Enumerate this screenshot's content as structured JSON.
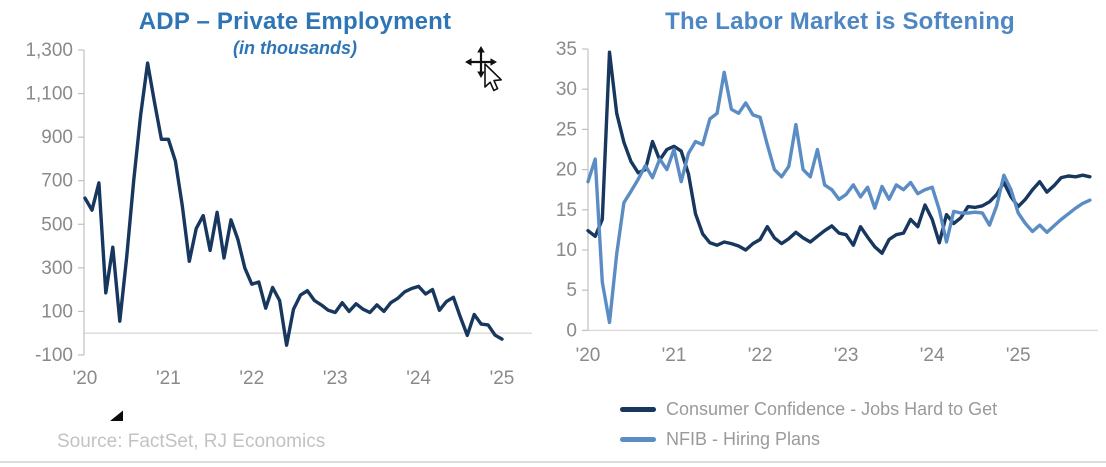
{
  "page": {
    "source_note": "Source: FactSet, RJ Economics",
    "cursor": "move-pointer-cursor"
  },
  "colors": {
    "left_title_blue": "#2E75B6",
    "right_title_blue": "#4E87C4",
    "navy_line": "#17375E",
    "steel_line": "#5B8DC4",
    "axis_label_gray": "#8a8a8a",
    "axis_line_gray": "#c0c0c0",
    "gridline_gray": "#d9d9d9",
    "legend_text_gray": "#9a9a9a",
    "source_text_gray": "#c2c2c2"
  },
  "chart_data": [
    {
      "type": "line",
      "title": "ADP – Private Employment",
      "subtitle": "(in thousands)",
      "x_start": "Jan 2020",
      "x_frequency": "monthly",
      "xticks": [
        "'20",
        "'21",
        "'22",
        "'23",
        "'24",
        "'25"
      ],
      "ytick_values": [
        1300,
        1100,
        900,
        700,
        500,
        300,
        100,
        -100
      ],
      "ytick_labels": [
        "1,300",
        "1,100",
        "900",
        "700",
        "500",
        "300",
        "100",
        "-100"
      ],
      "ylim": [
        -100,
        1300
      ],
      "grid": "zero-line-only",
      "legend": "none",
      "series": [
        {
          "name": "ADP private employment, monthly change (thousands)",
          "color": "#17375E",
          "values": [
            620,
            565,
            690,
            185,
            395,
            55,
            350,
            700,
            1000,
            1240,
            1060,
            890,
            890,
            790,
            585,
            330,
            480,
            540,
            380,
            555,
            345,
            520,
            430,
            300,
            225,
            235,
            115,
            210,
            150,
            -55,
            110,
            175,
            195,
            150,
            130,
            105,
            95,
            140,
            100,
            135,
            110,
            95,
            130,
            100,
            140,
            160,
            190,
            205,
            215,
            180,
            200,
            105,
            145,
            165,
            75,
            -10,
            86,
            42,
            38,
            -9,
            -27
          ]
        }
      ]
    },
    {
      "type": "line",
      "title": "The Labor Market is Softening",
      "subtitle": "",
      "x_start": "Jan 2020",
      "x_frequency": "monthly",
      "xticks": [
        "'20",
        "'21",
        "'22",
        "'23",
        "'24",
        "'25"
      ],
      "ytick_values": [
        35,
        30,
        25,
        20,
        15,
        10,
        5,
        0
      ],
      "ytick_labels": [
        "35",
        "30",
        "25",
        "20",
        "15",
        "10",
        "5",
        "0"
      ],
      "ylim": [
        0,
        35
      ],
      "grid": "zero-line-only",
      "legend": "bottom-left",
      "series": [
        {
          "name": "Consumer Confidence - Jobs Hard to Get",
          "color": "#17375E",
          "values": [
            12.4,
            11.7,
            13.8,
            34.6,
            27.0,
            23.4,
            21.0,
            19.6,
            20.0,
            23.5,
            21.2,
            22.5,
            22.9,
            22.3,
            19.5,
            14.5,
            12.0,
            10.9,
            10.6,
            11.0,
            10.8,
            10.5,
            10.0,
            10.8,
            11.3,
            12.9,
            11.5,
            10.8,
            11.4,
            12.2,
            11.5,
            11.0,
            11.7,
            12.4,
            13.0,
            12.1,
            11.9,
            10.6,
            12.9,
            11.6,
            10.4,
            9.6,
            11.3,
            11.9,
            12.1,
            13.8,
            12.9,
            15.6,
            13.8,
            10.9,
            14.4,
            13.3,
            14.0,
            15.4,
            15.3,
            15.5,
            16.0,
            16.9,
            18.4,
            16.6,
            15.4,
            16.3,
            17.5,
            18.5,
            17.2,
            18.0,
            19.0,
            19.2,
            19.1,
            19.3,
            19.1
          ]
        },
        {
          "name": "NFIB - Hiring Plans",
          "color": "#5B8DC4",
          "values": [
            18.5,
            21.3,
            6.0,
            1.0,
            9.5,
            15.9,
            17.3,
            18.8,
            20.5,
            19.0,
            21.3,
            20.0,
            22.5,
            18.5,
            22.0,
            23.5,
            23.1,
            26.3,
            27.0,
            32.1,
            27.5,
            27.0,
            28.3,
            26.8,
            26.5,
            23.1,
            20.0,
            19.1,
            20.4,
            25.6,
            20.0,
            19.1,
            22.5,
            18.1,
            17.5,
            16.3,
            16.9,
            18.1,
            16.6,
            17.8,
            15.2,
            17.9,
            16.3,
            18.1,
            17.5,
            18.4,
            17.0,
            17.5,
            17.8,
            15.0,
            11.0,
            14.8,
            14.6,
            14.6,
            14.7,
            14.6,
            13.1,
            15.5,
            19.3,
            17.5,
            14.6,
            13.3,
            12.3,
            13.1,
            12.2,
            13.0,
            13.8,
            14.5,
            15.2,
            15.8,
            16.2
          ]
        }
      ]
    }
  ]
}
